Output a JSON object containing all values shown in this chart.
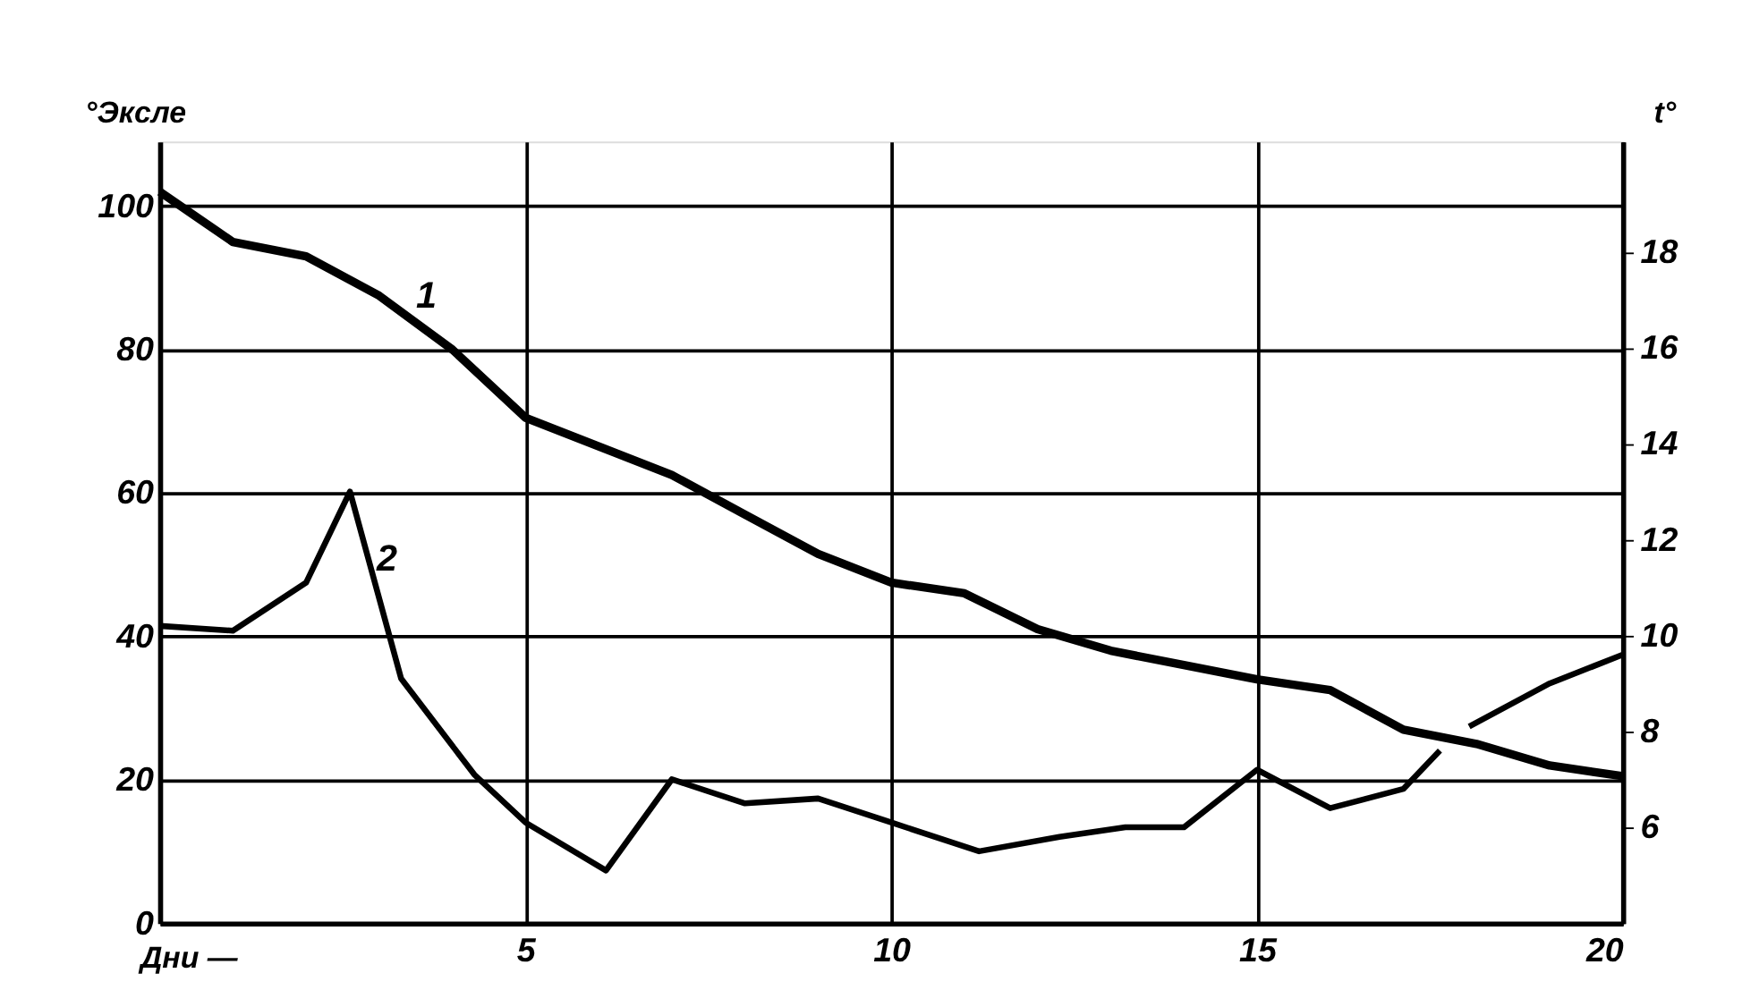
{
  "chart_data": {
    "type": "line",
    "xlabel": "Дни —",
    "ylabel": "°Эксле",
    "y2label": "t°",
    "xlim": [
      0,
      20
    ],
    "xticks": [
      5,
      10,
      15,
      20
    ],
    "ylim": [
      0,
      109
    ],
    "yticks": [
      0,
      20,
      40,
      60,
      80,
      100
    ],
    "y2lim": [
      4,
      20.3
    ],
    "y2ticks": [
      6,
      8,
      10,
      12,
      14,
      16,
      18
    ],
    "grid": true,
    "marker": "none",
    "line_style": "solid",
    "series": [
      {
        "name": "1",
        "color": "#000000",
        "x": [
          0,
          1,
          2,
          3,
          4,
          5,
          6,
          7,
          8,
          9,
          10,
          11,
          12,
          13,
          14,
          15,
          16,
          17,
          18,
          19,
          20
        ],
        "values": [
          102,
          95,
          93,
          87.5,
          80,
          70.5,
          66.5,
          62.5,
          57,
          51.5,
          47.5,
          46,
          41,
          38,
          36,
          34,
          32.5,
          27,
          25,
          22,
          20.5
        ]
      },
      {
        "name": "2",
        "color": "#000000",
        "axis": "y2",
        "x": [
          0,
          1,
          2,
          2.6,
          3.3,
          4.3,
          5,
          6.1,
          7,
          8,
          9,
          10,
          11.2,
          12.3,
          13.2,
          14,
          15,
          16,
          17,
          17.5,
          17.7,
          17.9,
          19,
          20
        ],
        "values": [
          10.2,
          10.1,
          11.1,
          13.0,
          9.1,
          7.1,
          6.1,
          5.1,
          7.0,
          6.5,
          6.6,
          6.1,
          5.5,
          5.8,
          6.0,
          6.0,
          7.2,
          6.4,
          6.8,
          7.6,
          null,
          8.1,
          9.0,
          9.6
        ]
      }
    ]
  }
}
